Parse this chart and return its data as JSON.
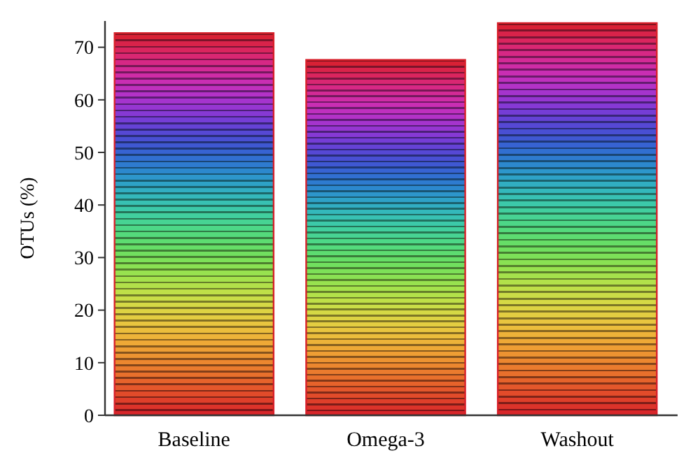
{
  "chart_data": {
    "type": "bar",
    "ylabel": "OTUs (%)",
    "categories": [
      "Baseline",
      "Omega-3",
      "Washout"
    ],
    "values": [
      72.7,
      67.6,
      74.6
    ],
    "color": "#d8202a",
    "ylim": [
      0,
      75
    ],
    "yticks": [
      0,
      10,
      20,
      30,
      40,
      50,
      60,
      70
    ],
    "grid": false
  }
}
